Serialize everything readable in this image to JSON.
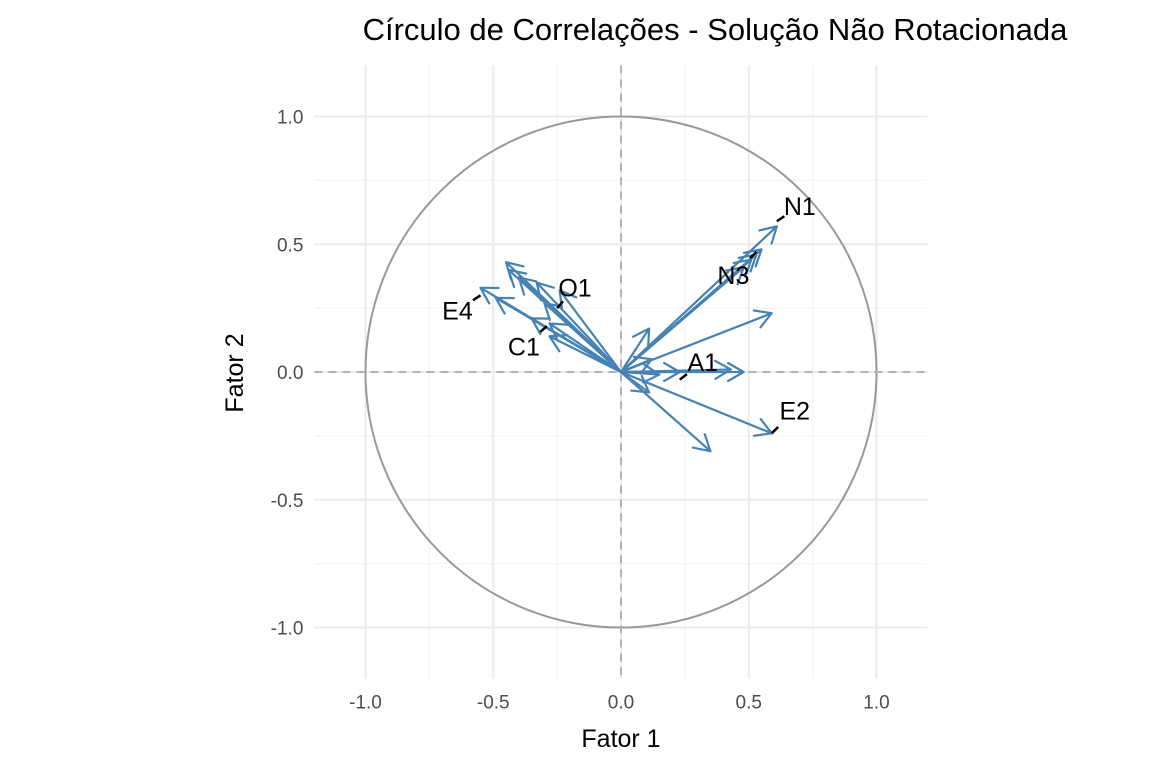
{
  "chart_data": {
    "type": "scatter",
    "subtype": "correlation-circle",
    "title": "Círculo de Correlações - Solução Não Rotacionada",
    "xlabel": "Fator 1",
    "ylabel": "Fator 2",
    "xlim": [
      -1.2,
      1.2
    ],
    "ylim": [
      -1.2,
      1.2
    ],
    "xticks": [
      -1.0,
      -0.5,
      0.0,
      0.5,
      1.0
    ],
    "yticks": [
      -1.0,
      -0.5,
      0.0,
      0.5,
      1.0
    ],
    "xtick_labels": [
      "-1.0",
      "-0.5",
      "0.0",
      "0.5",
      "1.0"
    ],
    "ytick_labels": [
      "-1.0",
      "-0.5",
      "0.0",
      "0.5",
      "1.0"
    ],
    "grid": true,
    "unit_circle_radius": 1.0,
    "colors": {
      "arrow": "#4682b4",
      "circle": "#999999",
      "reference_lines": "#b3b3b3",
      "grid_major": "#ebebeb",
      "grid_minor": "#f3f3f3",
      "label_segment": "#000000"
    },
    "vectors": [
      {
        "x": 0.61,
        "y": 0.57
      },
      {
        "x": 0.55,
        "y": 0.48
      },
      {
        "x": 0.53,
        "y": 0.46
      },
      {
        "x": 0.51,
        "y": 0.44
      },
      {
        "x": 0.48,
        "y": 0.41
      },
      {
        "x": 0.59,
        "y": 0.23
      },
      {
        "x": 0.11,
        "y": 0.17
      },
      {
        "x": 0.48,
        "y": 0.0
      },
      {
        "x": 0.43,
        "y": 0.01
      },
      {
        "x": 0.23,
        "y": 0.0
      },
      {
        "x": 0.15,
        "y": -0.01
      },
      {
        "x": 0.12,
        "y": 0.05
      },
      {
        "x": 0.11,
        "y": -0.08
      },
      {
        "x": 0.59,
        "y": -0.24
      },
      {
        "x": 0.35,
        "y": -0.31
      },
      {
        "x": -0.55,
        "y": 0.33
      },
      {
        "x": -0.49,
        "y": 0.29
      },
      {
        "x": -0.45,
        "y": 0.43
      },
      {
        "x": -0.44,
        "y": 0.4
      },
      {
        "x": -0.4,
        "y": 0.37
      },
      {
        "x": -0.33,
        "y": 0.35
      },
      {
        "x": -0.3,
        "y": 0.27
      },
      {
        "x": -0.24,
        "y": 0.32
      },
      {
        "x": -0.35,
        "y": 0.21
      },
      {
        "x": -0.28,
        "y": 0.19
      },
      {
        "x": -0.28,
        "y": 0.14
      }
    ],
    "labels": [
      {
        "text": "N1",
        "x": 0.61,
        "y": 0.59,
        "tx": 0.7,
        "ty": 0.65
      },
      {
        "text": "N3",
        "x": 0.53,
        "y": 0.47,
        "tx": 0.44,
        "ty": 0.38
      },
      {
        "text": "O1",
        "x": -0.25,
        "y": 0.25,
        "tx": -0.18,
        "ty": 0.33
      },
      {
        "text": "E4",
        "x": -0.55,
        "y": 0.3,
        "tx": -0.64,
        "ty": 0.24
      },
      {
        "text": "C1",
        "x": -0.29,
        "y": 0.18,
        "tx": -0.38,
        "ty": 0.1
      },
      {
        "text": "A1",
        "x": 0.23,
        "y": -0.03,
        "tx": 0.32,
        "ty": 0.04
      },
      {
        "text": "E2",
        "x": 0.59,
        "y": -0.24,
        "tx": 0.68,
        "ty": -0.15
      }
    ]
  }
}
